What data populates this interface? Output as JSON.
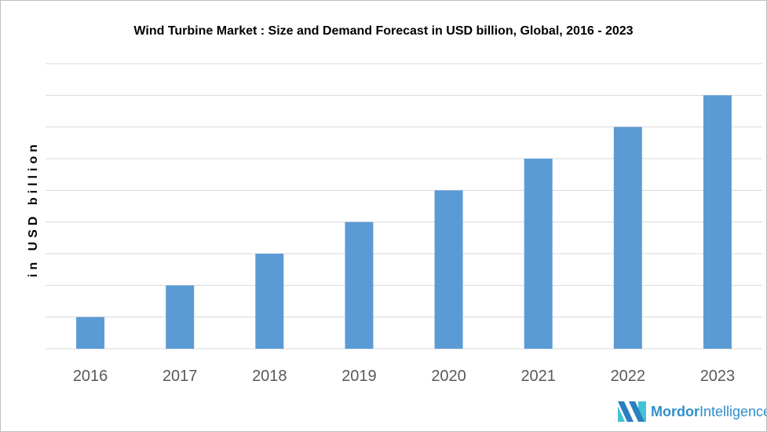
{
  "chart_data": {
    "type": "bar",
    "title": "Wind Turbine Market : Size and Demand Forecast in USD billion, Global,  2016 -  2023",
    "xlabel": "",
    "ylabel": "in USD billion",
    "categories": [
      "2016",
      "2017",
      "2018",
      "2019",
      "2020",
      "2021",
      "2022",
      "2023"
    ],
    "values": [
      1,
      2,
      3,
      4,
      5,
      6,
      7,
      8
    ],
    "ylim": [
      0,
      9
    ],
    "grid": true,
    "bar_color": "#5b9bd5",
    "grid_color": "#d9d9d9"
  },
  "logo": {
    "brand": "Mordor",
    "suffix": "Intelligence"
  }
}
